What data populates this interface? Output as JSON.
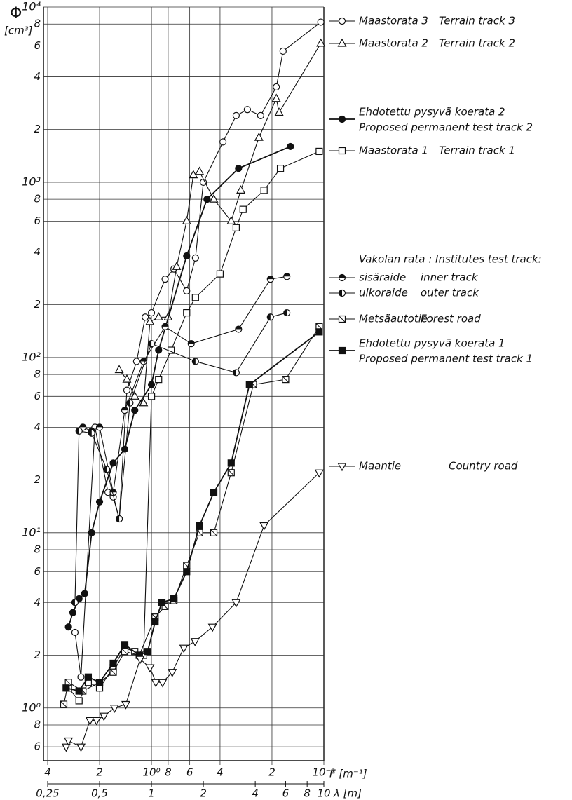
{
  "chart_data": {
    "type": "line",
    "y_label": "Φ",
    "y_unit": "[cm³]",
    "x_label": "λ [m]",
    "x2_label": "F [m⁻¹]",
    "log_x": true,
    "log_y": true,
    "grid": true,
    "xlim": [
      0.25,
      10
    ],
    "ylim": [
      0.5,
      10000
    ],
    "xticks": [
      {
        "value": 0.25,
        "label": "0,25"
      },
      {
        "value": 0.5,
        "label": "0,5"
      },
      1,
      2,
      4,
      6,
      8,
      10
    ],
    "x2ticks": [
      4,
      2,
      {
        "value": 1,
        "label": "10⁰"
      },
      {
        "value": 0.8,
        "label": "8"
      },
      {
        "value": 0.6,
        "label": "6"
      },
      {
        "value": 0.4,
        "label": "4"
      },
      {
        "value": 0.2,
        "label": "2"
      },
      {
        "value": 0.1,
        "label": "10⁻¹"
      }
    ],
    "yticks": [
      {
        "value": 0.6,
        "label": "6"
      },
      {
        "value": 0.8,
        "label": "8"
      },
      {
        "value": 1,
        "label": "10⁰"
      },
      2,
      4,
      6,
      8,
      {
        "value": 10,
        "label": "10¹"
      },
      {
        "value": 20,
        "label": "2"
      },
      {
        "value": 40,
        "label": "4"
      },
      {
        "value": 60,
        "label": "6"
      },
      {
        "value": 80,
        "label": "8"
      },
      {
        "value": 100,
        "label": "10²"
      },
      {
        "value": 200,
        "label": "2"
      },
      {
        "value": 400,
        "label": "4"
      },
      {
        "value": 600,
        "label": "6"
      },
      {
        "value": 800,
        "label": "8"
      },
      {
        "value": 1000,
        "label": "10³"
      },
      {
        "value": 2000,
        "label": "2"
      },
      {
        "value": 4000,
        "label": "4"
      },
      {
        "value": 6000,
        "label": "6"
      },
      {
        "value": 8000,
        "label": "8"
      },
      {
        "value": 10000,
        "label": "10⁴"
      }
    ],
    "legend_group": "Vakolan rata : Institutes test track:",
    "series": [
      {
        "name": "Maastorata 3",
        "name2": "Terrain track 3",
        "marker": "circle-open",
        "color": "#111",
        "x": [
          0.36,
          0.39,
          0.47,
          0.56,
          0.6,
          0.65,
          0.72,
          0.82,
          0.92,
          1.0,
          1.2,
          1.35,
          1.6,
          1.8,
          2.0,
          2.6,
          3.1,
          3.6,
          4.3,
          5.3,
          5.8,
          9.6
        ],
        "values": [
          2.7,
          1.5,
          40,
          17,
          16,
          12,
          65,
          95,
          170,
          180,
          280,
          320,
          240,
          370,
          1000,
          1700,
          2400,
          2600,
          2400,
          3500,
          5600,
          8200
        ]
      },
      {
        "name": "Maastorata 2",
        "name2": "Terrain track 2",
        "marker": "triangle-open",
        "color": "#111",
        "x": [
          0.65,
          0.72,
          0.8,
          0.9,
          0.98,
          1.1,
          1.25,
          1.4,
          1.6,
          1.75,
          1.9,
          2.3,
          2.9,
          3.3,
          4.2,
          5.3,
          5.5,
          9.6
        ],
        "values": [
          85,
          75,
          60,
          55,
          160,
          170,
          170,
          330,
          600,
          1100,
          1150,
          800,
          600,
          900,
          1800,
          3000,
          2500,
          6200
        ]
      },
      {
        "name": "Ehdotettu pysyvä koerata 2",
        "name2": "Proposed permanent test track 2",
        "marker": "circle-filled",
        "color": "#111",
        "x": [
          0.33,
          0.35,
          0.38,
          0.41,
          0.45,
          0.5,
          0.6,
          0.7,
          0.8,
          1.0,
          1.1,
          1.6,
          2.1,
          3.2,
          6.4
        ],
        "values": [
          2.9,
          3.5,
          4.2,
          4.5,
          10,
          15,
          25,
          30,
          50,
          70,
          110,
          380,
          800,
          1200,
          1600
        ]
      },
      {
        "name": "Maastorata 1",
        "name2": "Terrain track 1",
        "marker": "square-open",
        "color": "#111",
        "x": [
          0.33,
          0.38,
          0.43,
          0.5,
          0.6,
          0.7,
          0.8,
          0.9,
          1.0,
          1.1,
          1.3,
          1.6,
          1.8,
          2.5,
          3.1,
          3.4,
          4.5,
          5.6,
          9.4
        ],
        "values": [
          1.3,
          1.1,
          1.4,
          1.3,
          1.7,
          2.2,
          2.1,
          2.0,
          60,
          75,
          110,
          180,
          220,
          300,
          550,
          700,
          900,
          1200,
          1500
        ]
      },
      {
        "name": "sisäraide",
        "name2": "inner track",
        "marker": "circle-half",
        "color": "#111",
        "x": [
          0.4,
          0.45,
          0.5,
          0.6,
          0.7,
          0.9,
          1.2,
          1.7,
          3.2,
          4.9,
          6.1
        ],
        "values": [
          40,
          38,
          40,
          17,
          50,
          95,
          150,
          120,
          145,
          280,
          290
        ]
      },
      {
        "name": "ulkoraide",
        "name2": "outer track",
        "marker": "circle-half2",
        "color": "#111",
        "x": [
          0.36,
          0.38,
          0.45,
          0.55,
          0.65,
          0.75,
          1.0,
          1.8,
          3.1,
          4.9,
          6.1
        ],
        "values": [
          4,
          38,
          37,
          23,
          12,
          55,
          120,
          95,
          82,
          170,
          180
        ]
      },
      {
        "name": "Metsäautotie",
        "name2": "Forest road",
        "marker": "square-slash",
        "color": "#111",
        "x": [
          0.31,
          0.33,
          0.4,
          0.5,
          0.6,
          0.7,
          0.85,
          1.05,
          1.2,
          1.35,
          1.6,
          1.9,
          2.3,
          2.9,
          3.9,
          6.0,
          9.4
        ],
        "values": [
          1.05,
          1.4,
          1.25,
          1.4,
          1.6,
          2.1,
          2.0,
          3.3,
          3.8,
          4.1,
          6.5,
          10,
          10,
          22,
          70,
          75,
          150
        ]
      },
      {
        "name": "Ehdotettu pysyvä koerata 1",
        "name2": "Proposed permanent test track 1",
        "marker": "square-filled",
        "color": "#111",
        "x": [
          0.32,
          0.38,
          0.43,
          0.5,
          0.6,
          0.7,
          0.85,
          0.95,
          1.05,
          1.15,
          1.35,
          1.6,
          1.9,
          2.3,
          2.9,
          3.7,
          9.4
        ],
        "values": [
          1.3,
          1.25,
          1.5,
          1.4,
          1.8,
          2.3,
          2.0,
          2.1,
          3.1,
          4.0,
          4.2,
          6.0,
          11,
          17,
          25,
          70,
          140
        ]
      },
      {
        "name": "Maantie",
        "name2": "Country road",
        "marker": "triangle-down",
        "color": "#111",
        "x": [
          0.32,
          0.33,
          0.39,
          0.44,
          0.48,
          0.53,
          0.61,
          0.71,
          0.86,
          0.98,
          1.06,
          1.16,
          1.32,
          1.54,
          1.79,
          2.26,
          3.1,
          4.5,
          9.4
        ],
        "values": [
          0.6,
          0.65,
          0.6,
          0.85,
          0.85,
          0.9,
          1.0,
          1.05,
          1.9,
          1.7,
          1.4,
          1.4,
          1.6,
          2.2,
          2.4,
          2.9,
          4.0,
          11,
          22
        ]
      }
    ]
  }
}
